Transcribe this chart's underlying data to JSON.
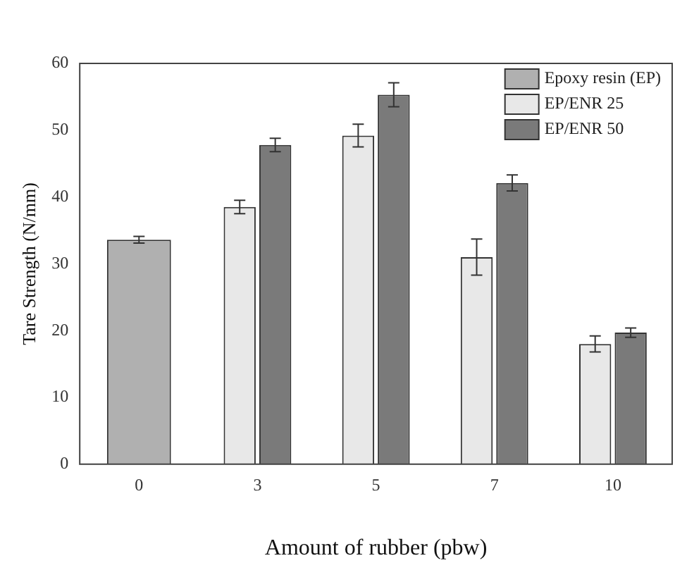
{
  "chart_data": {
    "type": "bar",
    "xlabel": "Amount of rubber (pbw)",
    "ylabel": "Tare Strength (N/mm)",
    "categories": [
      "0",
      "3",
      "5",
      "7",
      "10"
    ],
    "series": [
      {
        "name": "Epoxy resin (EP)",
        "color": "#b0b0b0",
        "values": [
          33.6,
          null,
          null,
          null,
          null
        ],
        "errors": [
          0.5,
          null,
          null,
          null,
          null
        ]
      },
      {
        "name": "EP/ENR 25",
        "color": "#e8e8e8",
        "values": [
          null,
          38.5,
          49.2,
          31,
          18
        ],
        "errors": [
          null,
          1,
          1.7,
          2.7,
          1.2
        ]
      },
      {
        "name": "EP/ENR 50",
        "color": "#7a7a7a",
        "values": [
          null,
          47.8,
          55.3,
          42.1,
          19.7
        ],
        "errors": [
          null,
          1,
          1.8,
          1.2,
          0.7
        ]
      }
    ],
    "ylim": [
      0,
      60
    ],
    "yticks": [
      0,
      10,
      20,
      30,
      40,
      50,
      60
    ],
    "grid": false,
    "legend": "top right"
  }
}
